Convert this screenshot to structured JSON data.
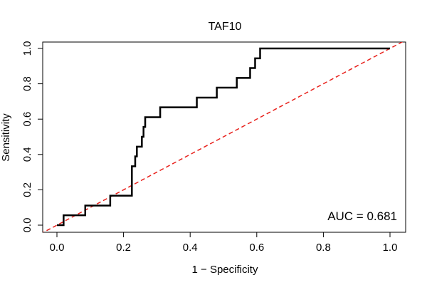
{
  "chart_data": {
    "type": "line",
    "title": "TAF10",
    "xlabel": "1 − Specificity",
    "ylabel": "Sensitivity",
    "xlim": [
      0,
      1
    ],
    "ylim": [
      0,
      1
    ],
    "x_ticks": [
      0.0,
      0.2,
      0.4,
      0.6,
      0.8,
      1.0
    ],
    "y_ticks": [
      0.0,
      0.2,
      0.4,
      0.6,
      0.8,
      1.0
    ],
    "x_tick_labels": [
      "0.0",
      "0.2",
      "0.4",
      "0.6",
      "0.8",
      "1.0"
    ],
    "y_tick_labels": [
      "0.0",
      "0.2",
      "0.4",
      "0.6",
      "0.8",
      "1.0"
    ],
    "grid": false,
    "annotation": "AUC = 0.681",
    "series": [
      {
        "style": "solid",
        "color": "#000000",
        "points": [
          [
            0.0,
            0.0
          ],
          [
            0.02,
            0.0
          ],
          [
            0.02,
            0.056
          ],
          [
            0.085,
            0.056
          ],
          [
            0.085,
            0.111
          ],
          [
            0.16,
            0.111
          ],
          [
            0.16,
            0.167
          ],
          [
            0.225,
            0.167
          ],
          [
            0.225,
            0.333
          ],
          [
            0.235,
            0.333
          ],
          [
            0.235,
            0.389
          ],
          [
            0.24,
            0.389
          ],
          [
            0.24,
            0.444
          ],
          [
            0.255,
            0.444
          ],
          [
            0.255,
            0.5
          ],
          [
            0.26,
            0.5
          ],
          [
            0.26,
            0.556
          ],
          [
            0.265,
            0.556
          ],
          [
            0.265,
            0.611
          ],
          [
            0.31,
            0.611
          ],
          [
            0.31,
            0.667
          ],
          [
            0.42,
            0.667
          ],
          [
            0.42,
            0.722
          ],
          [
            0.48,
            0.722
          ],
          [
            0.48,
            0.778
          ],
          [
            0.54,
            0.778
          ],
          [
            0.54,
            0.833
          ],
          [
            0.58,
            0.833
          ],
          [
            0.58,
            0.889
          ],
          [
            0.595,
            0.889
          ],
          [
            0.595,
            0.944
          ],
          [
            0.61,
            0.944
          ],
          [
            0.61,
            1.0
          ],
          [
            1.0,
            1.0
          ]
        ]
      },
      {
        "style": "dashed",
        "color": "#e8211c",
        "points": [
          [
            -0.05,
            -0.05
          ],
          [
            1.05,
            1.05
          ]
        ]
      }
    ]
  }
}
